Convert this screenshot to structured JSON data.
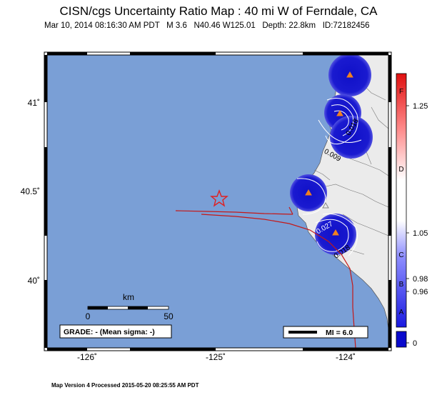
{
  "header": {
    "title": "CISN/cgs Uncertainty Ratio Map : 40 mi W of Ferndale, CA",
    "subtitle": "Mar 10, 2014 08:16:30 AM PDT   M 3.6   N40.46 W125.01   Depth: 22.8km   ID:72182456"
  },
  "axes": {
    "x_ticks": [
      "-126˚",
      "-125˚",
      "-124˚"
    ],
    "y_ticks": [
      "41˚",
      "40.5˚",
      "40˚"
    ]
  },
  "scale_bar": {
    "unit": "km",
    "min": "0",
    "max": "50"
  },
  "grade_box": "GRADE: - (Mean sigma: -)",
  "mi_legend": "MI = 6.0",
  "contour_labels": [
    "0.018",
    "0.009",
    "0.027",
    "0.018"
  ],
  "colorbar": {
    "values": [
      "1.25",
      "1.05",
      "0.98",
      "0.96",
      "0"
    ],
    "grades": [
      "F",
      "D",
      "C",
      "B",
      "A"
    ]
  },
  "footer": "Map Version 4 Processed 2015-05-20 08:25:55 AM PDT",
  "colors": {
    "ocean": "#7a9fd6",
    "land": "#ebebeb",
    "station_fill": "#1010c8",
    "fault": "#c41818",
    "epicenter": "#e02020"
  }
}
